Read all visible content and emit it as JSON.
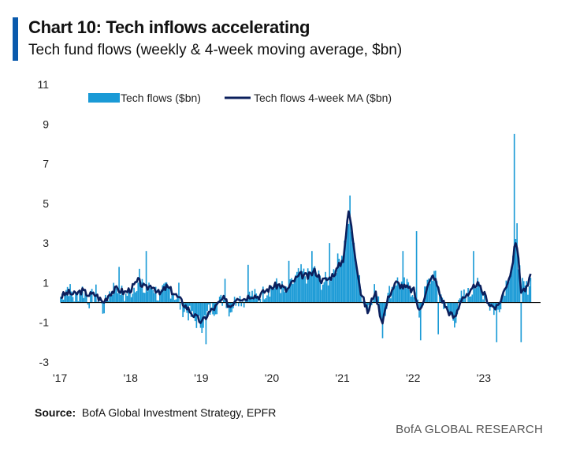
{
  "header": {
    "title": "Chart 10: Tech inflows accelerating",
    "subtitle": "Tech fund flows (weekly & 4-week moving average, $bn)"
  },
  "footer": {
    "source_label": "Source:",
    "source_text": "BofA Global Investment Strategy, EPFR",
    "brand": "BofA GLOBAL RESEARCH"
  },
  "colors": {
    "bar": "#1a9ad6",
    "line": "#0b1f5c",
    "accent": "#0a5aad"
  },
  "chart_data": {
    "type": "bar",
    "title": "Chart 10: Tech inflows accelerating",
    "ylabel": "$bn",
    "ylim": [
      -3,
      11
    ],
    "yticks": [
      -3,
      -1,
      1,
      3,
      5,
      7,
      9,
      11
    ],
    "xlim": [
      2017.0,
      2023.75
    ],
    "xticks": [
      {
        "value": 2017,
        "label": "'17"
      },
      {
        "value": 2018,
        "label": "'18"
      },
      {
        "value": 2019,
        "label": "'19"
      },
      {
        "value": 2020,
        "label": "'20"
      },
      {
        "value": 2021,
        "label": "'21"
      },
      {
        "value": 2022,
        "label": "'22"
      },
      {
        "value": 2023,
        "label": "'23"
      }
    ],
    "legend": [
      "Tech flows ($bn)",
      "Tech flows 4-week MA ($bn)"
    ],
    "series": [
      {
        "name": "Tech flows ($bn)",
        "kind": "bar",
        "anchors": [
          [
            2017.0,
            0.3
          ],
          [
            2017.1,
            0.8
          ],
          [
            2017.2,
            0.2
          ],
          [
            2017.3,
            0.7
          ],
          [
            2017.4,
            0.1
          ],
          [
            2017.5,
            0.5
          ],
          [
            2017.6,
            -0.4
          ],
          [
            2017.7,
            0.6
          ],
          [
            2017.8,
            0.9
          ],
          [
            2017.9,
            0.3
          ],
          [
            2018.0,
            0.6
          ],
          [
            2018.1,
            1.1
          ],
          [
            2018.2,
            0.5
          ],
          [
            2018.3,
            0.9
          ],
          [
            2018.4,
            0.2
          ],
          [
            2018.5,
            0.8
          ],
          [
            2018.6,
            0.5
          ],
          [
            2018.7,
            -0.2
          ],
          [
            2018.8,
            -0.5
          ],
          [
            2018.9,
            -0.9
          ],
          [
            2019.0,
            -1.1
          ],
          [
            2019.1,
            -0.4
          ],
          [
            2019.2,
            -0.2
          ],
          [
            2019.3,
            0.2
          ],
          [
            2019.4,
            -0.4
          ],
          [
            2019.5,
            0.3
          ],
          [
            2019.6,
            0.1
          ],
          [
            2019.7,
            0.4
          ],
          [
            2019.8,
            0.2
          ],
          [
            2019.9,
            0.6
          ],
          [
            2020.0,
            0.8
          ],
          [
            2020.1,
            0.9
          ],
          [
            2020.2,
            0.4
          ],
          [
            2020.3,
            1.1
          ],
          [
            2020.4,
            1.5
          ],
          [
            2020.5,
            1.3
          ],
          [
            2020.6,
            1.6
          ],
          [
            2020.7,
            1.0
          ],
          [
            2020.8,
            1.2
          ],
          [
            2020.9,
            1.9
          ],
          [
            2021.0,
            2.6
          ],
          [
            2021.08,
            4.2
          ],
          [
            2021.15,
            2.8
          ],
          [
            2021.25,
            0.6
          ],
          [
            2021.35,
            -0.3
          ],
          [
            2021.45,
            0.8
          ],
          [
            2021.55,
            -0.9
          ],
          [
            2021.65,
            0.5
          ],
          [
            2021.75,
            1.1
          ],
          [
            2021.85,
            0.9
          ],
          [
            2022.0,
            0.6
          ],
          [
            2022.08,
            -0.6
          ],
          [
            2022.18,
            0.8
          ],
          [
            2022.28,
            1.5
          ],
          [
            2022.38,
            0.4
          ],
          [
            2022.48,
            -0.5
          ],
          [
            2022.58,
            -0.9
          ],
          [
            2022.68,
            0.3
          ],
          [
            2022.78,
            0.4
          ],
          [
            2022.88,
            0.9
          ],
          [
            2023.0,
            0.5
          ],
          [
            2023.08,
            -0.2
          ],
          [
            2023.18,
            -0.5
          ],
          [
            2023.28,
            0.7
          ],
          [
            2023.38,
            1.8
          ],
          [
            2023.45,
            3.0
          ],
          [
            2023.52,
            1.0
          ],
          [
            2023.6,
            0.7
          ],
          [
            2023.66,
            1.2
          ]
        ],
        "spikes": [
          [
            2017.82,
            1.8
          ],
          [
            2018.12,
            1.7
          ],
          [
            2018.22,
            2.6
          ],
          [
            2018.68,
            1.0
          ],
          [
            2019.05,
            -2.1
          ],
          [
            2019.32,
            1.2
          ],
          [
            2019.65,
            1.9
          ],
          [
            2020.23,
            2.1
          ],
          [
            2020.55,
            2.6
          ],
          [
            2020.8,
            3.0
          ],
          [
            2021.09,
            5.4
          ],
          [
            2021.55,
            -1.8
          ],
          [
            2021.85,
            2.6
          ],
          [
            2022.04,
            3.6
          ],
          [
            2022.1,
            -1.9
          ],
          [
            2022.35,
            -1.6
          ],
          [
            2022.85,
            2.6
          ],
          [
            2023.18,
            -2.0
          ],
          [
            2023.42,
            8.5
          ],
          [
            2023.47,
            4.0
          ],
          [
            2023.52,
            -2.0
          ]
        ]
      },
      {
        "name": "Tech flows 4-week MA ($bn)",
        "kind": "line",
        "anchors": [
          [
            2017.0,
            0.3
          ],
          [
            2017.1,
            0.5
          ],
          [
            2017.2,
            0.4
          ],
          [
            2017.3,
            0.6
          ],
          [
            2017.4,
            0.4
          ],
          [
            2017.5,
            0.4
          ],
          [
            2017.6,
            0.0
          ],
          [
            2017.7,
            0.5
          ],
          [
            2017.8,
            0.7
          ],
          [
            2017.9,
            0.5
          ],
          [
            2018.0,
            0.7
          ],
          [
            2018.1,
            1.1
          ],
          [
            2018.2,
            0.7
          ],
          [
            2018.3,
            0.9
          ],
          [
            2018.4,
            0.4
          ],
          [
            2018.5,
            0.8
          ],
          [
            2018.6,
            0.5
          ],
          [
            2018.7,
            0.1
          ],
          [
            2018.8,
            -0.3
          ],
          [
            2018.9,
            -0.7
          ],
          [
            2019.0,
            -1.0
          ],
          [
            2019.1,
            -0.5
          ],
          [
            2019.2,
            -0.2
          ],
          [
            2019.3,
            0.2
          ],
          [
            2019.4,
            -0.2
          ],
          [
            2019.5,
            0.3
          ],
          [
            2019.6,
            0.2
          ],
          [
            2019.7,
            0.4
          ],
          [
            2019.8,
            0.3
          ],
          [
            2019.9,
            0.6
          ],
          [
            2020.0,
            0.8
          ],
          [
            2020.1,
            0.9
          ],
          [
            2020.2,
            0.6
          ],
          [
            2020.3,
            1.1
          ],
          [
            2020.4,
            1.4
          ],
          [
            2020.5,
            1.3
          ],
          [
            2020.6,
            1.6
          ],
          [
            2020.7,
            1.1
          ],
          [
            2020.8,
            1.2
          ],
          [
            2020.9,
            1.6
          ],
          [
            2021.0,
            2.2
          ],
          [
            2021.08,
            4.7
          ],
          [
            2021.15,
            2.9
          ],
          [
            2021.25,
            0.5
          ],
          [
            2021.35,
            -0.5
          ],
          [
            2021.45,
            0.6
          ],
          [
            2021.55,
            -1.0
          ],
          [
            2021.65,
            0.4
          ],
          [
            2021.75,
            1.0
          ],
          [
            2021.85,
            0.8
          ],
          [
            2022.0,
            0.6
          ],
          [
            2022.08,
            -0.5
          ],
          [
            2022.18,
            0.7
          ],
          [
            2022.28,
            1.4
          ],
          [
            2022.38,
            0.3
          ],
          [
            2022.48,
            -0.4
          ],
          [
            2022.58,
            -0.8
          ],
          [
            2022.68,
            0.3
          ],
          [
            2022.78,
            0.3
          ],
          [
            2022.88,
            1.0
          ],
          [
            2023.0,
            0.4
          ],
          [
            2023.08,
            -0.1
          ],
          [
            2023.18,
            -0.3
          ],
          [
            2023.28,
            0.6
          ],
          [
            2023.38,
            1.6
          ],
          [
            2023.45,
            3.3
          ],
          [
            2023.52,
            0.6
          ],
          [
            2023.6,
            0.7
          ],
          [
            2023.66,
            1.4
          ]
        ]
      }
    ]
  }
}
